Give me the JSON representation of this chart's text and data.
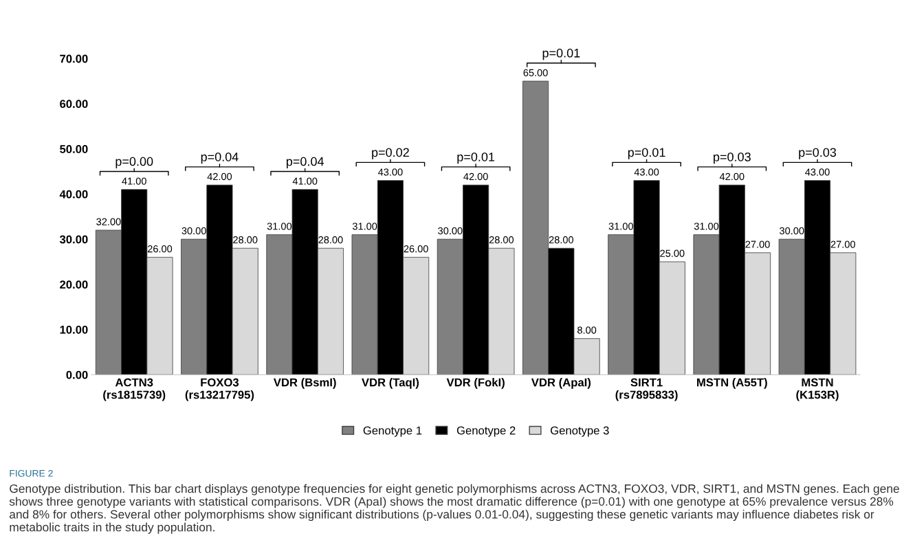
{
  "chart_data": {
    "type": "bar",
    "categories": [
      "ACTN3\n(rs1815739)",
      "FOXO3\n(rs13217795)",
      "VDR (BsmI)",
      "VDR (TaqI)",
      "VDR (FokI)",
      "VDR (ApaI)",
      "SIRT1\n(rs7895833)",
      "MSTN (A55T)",
      "MSTN\n(K153R)"
    ],
    "series": [
      {
        "name": "Genotype 1",
        "color": "#808080",
        "values": [
          32,
          30,
          31,
          31,
          30,
          65,
          31,
          31,
          30
        ],
        "value_labels": [
          "32.00",
          "30.00",
          "31.00",
          "31.00",
          "30.00",
          "65.00",
          "31.00",
          "31.00",
          "30.00"
        ]
      },
      {
        "name": "Genotype 2",
        "color": "#000000",
        "values": [
          41,
          42,
          41,
          43,
          42,
          28,
          43,
          42,
          43
        ],
        "value_labels": [
          "41.00",
          "42.00",
          "41.00",
          "43.00",
          "42.00",
          "28.00",
          "43.00",
          "42.00",
          "43.00"
        ]
      },
      {
        "name": "Genotype 3",
        "color": "#d9d9d9",
        "values": [
          26,
          28,
          28,
          26,
          28,
          8,
          25,
          27,
          27
        ],
        "value_labels": [
          "26.00",
          "28.00",
          "28.00",
          "26.00",
          "28.00",
          "8.00",
          "25.00",
          "27.00",
          "27.00"
        ]
      }
    ],
    "ylim": [
      0,
      70
    ],
    "yticks": [
      {
        "value": 0,
        "label": "0.00"
      },
      {
        "value": 10,
        "label": "10.00"
      },
      {
        "value": 20,
        "label": "20.00"
      },
      {
        "value": 30,
        "label": "30.00"
      },
      {
        "value": 40,
        "label": "40.00"
      },
      {
        "value": 50,
        "label": "50.00"
      },
      {
        "value": 60,
        "label": "60.00"
      },
      {
        "value": 70,
        "label": "70.00"
      }
    ],
    "grid": false,
    "legend": "bottom",
    "annotations": [
      "p=0.00",
      "p=0.04",
      "p=0.04",
      "p=0.02",
      "p=0.01",
      "p=0.01",
      "p=0.01",
      "p=0.03",
      "p=0.03",
      "FIGURE 2",
      "Genotype distribution. This bar chart displays genotype frequencies for eight genetic polymorphisms across ACTN3, FOXO3, VDR, SIRT1, and MSTN genes. Each gene shows three genotype variants with statistical comparisons. VDR (ApaI) shows the most dramatic difference (p=0.01) with one genotype at 65% prevalence versus 28% and 8% for others. Several other polymorphisms show significant distributions (p-values 0.01-0.04), suggesting these genetic variants may influence diabetes risk or metabolic traits in the study population."
    ]
  }
}
